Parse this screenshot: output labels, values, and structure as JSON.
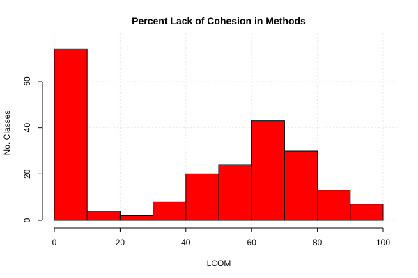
{
  "chart_data": {
    "type": "bar",
    "title": "Percent Lack of Cohesion in Methods",
    "xlabel": "LCOM",
    "ylabel": "No. Classes",
    "bins": [
      [
        0,
        10
      ],
      [
        10,
        20
      ],
      [
        20,
        30
      ],
      [
        30,
        40
      ],
      [
        40,
        50
      ],
      [
        50,
        60
      ],
      [
        60,
        70
      ],
      [
        70,
        80
      ],
      [
        80,
        90
      ],
      [
        90,
        100
      ]
    ],
    "values": [
      74,
      4,
      2,
      8,
      20,
      24,
      43,
      30,
      13,
      7
    ],
    "xlim": [
      0,
      100
    ],
    "ylim": [
      0,
      76
    ],
    "xticks": [
      0,
      20,
      40,
      60,
      80,
      100
    ],
    "yticks": [
      0,
      20,
      40,
      60
    ],
    "grid": true,
    "bar_color": "#ff0000",
    "edge_color": "#000000"
  }
}
